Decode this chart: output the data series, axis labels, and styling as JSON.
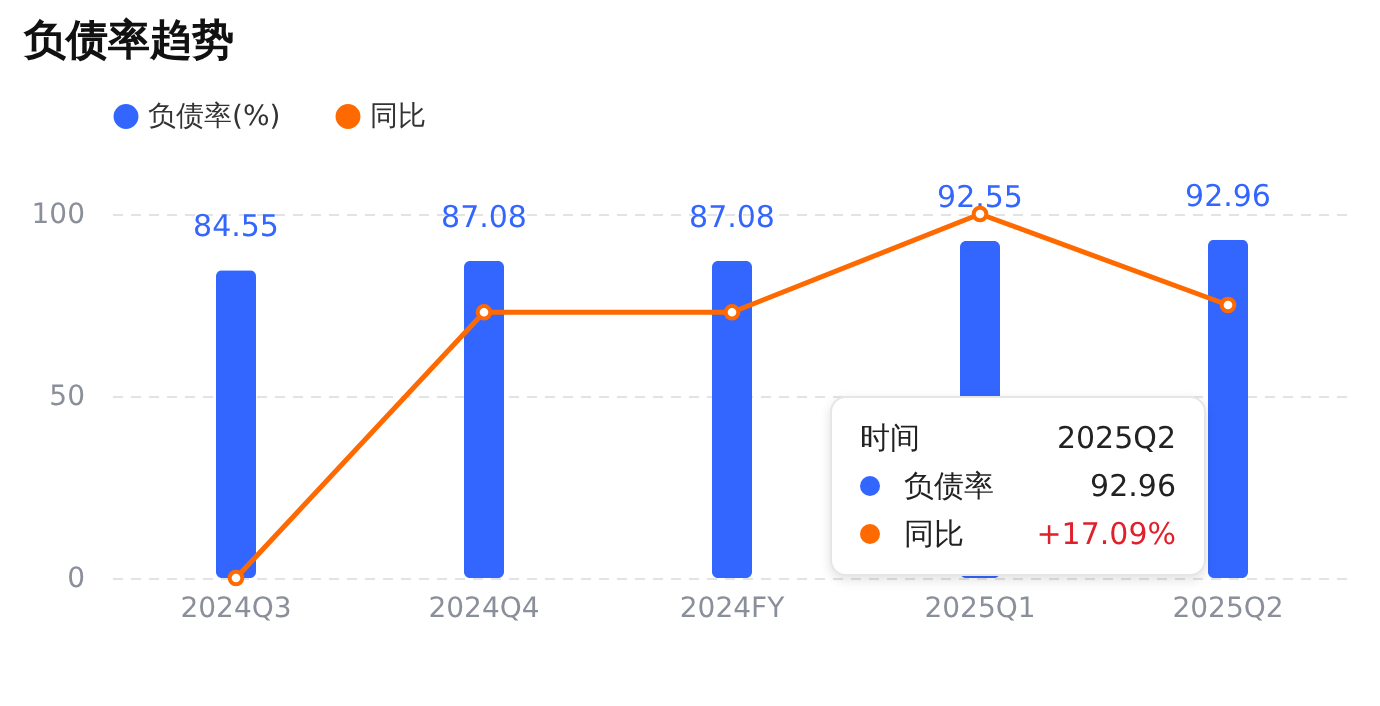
{
  "chart_data": {
    "type": "bar",
    "title": "负债率趋势",
    "categories": [
      "2024Q3",
      "2024Q4",
      "2024FY",
      "2025Q1",
      "2025Q2"
    ],
    "series": [
      {
        "name": "负债率(%)",
        "color": "#3366ff",
        "values": [
          84.55,
          87.08,
          87.08,
          92.55,
          92.96
        ],
        "data_labels": true
      },
      {
        "name": "同比",
        "type": "line",
        "color": "#ff6a00",
        "values": [
          0,
          73,
          73,
          100,
          75
        ],
        "marker": "circle"
      }
    ],
    "ylim": [
      0,
      100
    ],
    "yticks": [
      0,
      50,
      100
    ],
    "grid": "y",
    "legend": "top left",
    "annotations": [
      "时间",
      "2025Q2",
      "负债率",
      "92.96",
      "同比",
      "+17.09%"
    ]
  }
}
